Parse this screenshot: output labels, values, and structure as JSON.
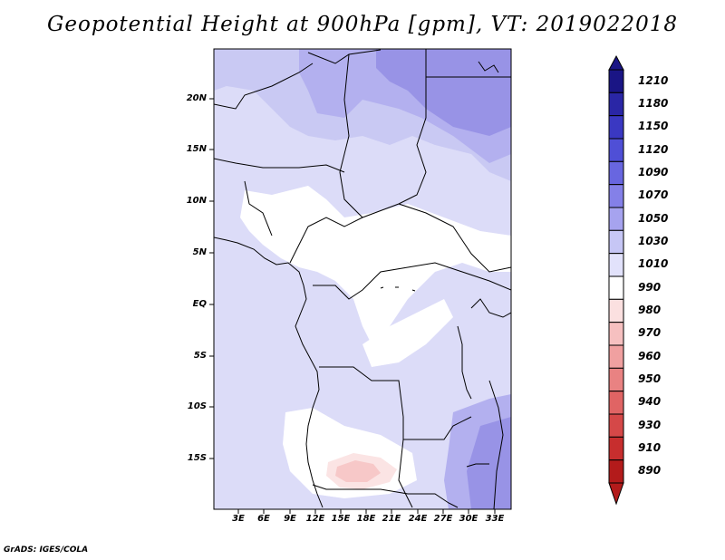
{
  "title": "Geopotential Height at 900hPa [gpm], VT: 2019022018",
  "lat_labels": [
    "20N",
    "15N",
    "10N",
    "5N",
    "EQ",
    "5S",
    "10S",
    "15S"
  ],
  "lon_labels": [
    "3E",
    "6E",
    "9E",
    "12E",
    "15E",
    "18E",
    "21E",
    "24E",
    "27E",
    "30E",
    "33E"
  ],
  "colorbar": {
    "levels": [
      "1210",
      "1180",
      "1150",
      "1120",
      "1090",
      "1070",
      "1050",
      "1030",
      "1010",
      "990",
      "980",
      "970",
      "960",
      "950",
      "940",
      "930",
      "910",
      "890"
    ],
    "colors": [
      "#1a1585",
      "#2a26a6",
      "#3a38c2",
      "#4f4fd6",
      "#6866e0",
      "#8480e8",
      "#a6a3ef",
      "#c6c6f5",
      "#e2e2fb",
      "#ffffff",
      "#fbe0e0",
      "#f6c0c0",
      "#f0a0a0",
      "#e98282",
      "#e06464",
      "#d54848",
      "#c72e2e",
      "#b31b1b"
    ]
  },
  "credit": "GrADS: IGES/COLA"
}
